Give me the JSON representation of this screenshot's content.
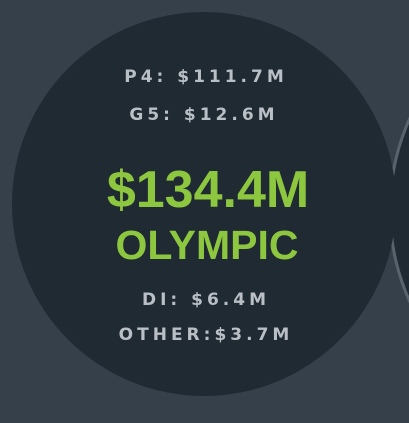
{
  "panel": {
    "top_lines": [
      "P4: $111.7M",
      "G5: $12.6M"
    ],
    "total": "$134.4M",
    "name": "OLYMPIC",
    "bottom_lines": [
      "DI: $6.4M",
      "OTHER:$3.7M"
    ]
  }
}
